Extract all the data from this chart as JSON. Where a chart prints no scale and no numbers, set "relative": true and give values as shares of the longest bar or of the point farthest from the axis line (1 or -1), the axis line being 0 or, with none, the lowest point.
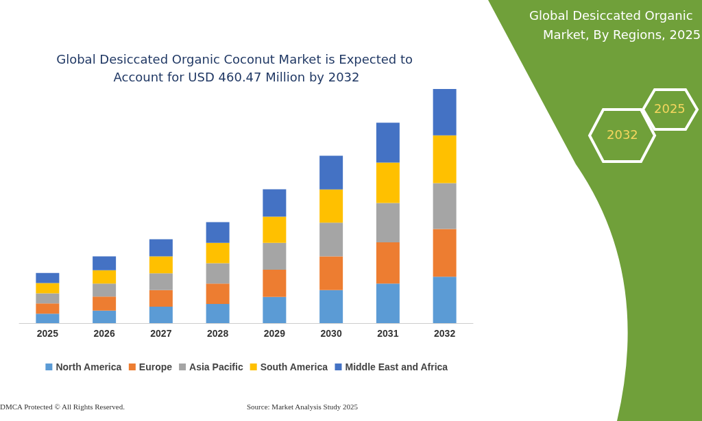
{
  "chart_data": {
    "type": "bar",
    "title": "Global Desiccated Organic Coconut Market is Expected to Account for USD 460.47 Million by 2032",
    "categories": [
      "2025",
      "2026",
      "2027",
      "2028",
      "2029",
      "2030",
      "2031",
      "2032"
    ],
    "stacked": true,
    "relative": true,
    "legend": "bottom",
    "series": [
      {
        "name": "North America",
        "color": "#5b9bd5",
        "values": [
          0.04,
          0.053,
          0.07,
          0.082,
          0.112,
          0.141,
          0.169,
          0.198
        ]
      },
      {
        "name": "Europe",
        "color": "#ed7d31",
        "values": [
          0.044,
          0.06,
          0.071,
          0.087,
          0.116,
          0.144,
          0.176,
          0.204
        ]
      },
      {
        "name": "Asia Pacific",
        "color": "#a5a5a5",
        "values": [
          0.043,
          0.056,
          0.072,
          0.087,
          0.115,
          0.144,
          0.168,
          0.196
        ]
      },
      {
        "name": "South America",
        "color": "#ffc000",
        "values": [
          0.044,
          0.057,
          0.072,
          0.087,
          0.112,
          0.142,
          0.173,
          0.204
        ]
      },
      {
        "name": "Middle East and Africa",
        "color": "#4472c4",
        "values": [
          0.043,
          0.059,
          0.073,
          0.088,
          0.117,
          0.144,
          0.17,
          0.198
        ]
      }
    ],
    "annotations": [
      "Global Desiccated Organic",
      "Market, By Regions, 2025",
      "2032",
      "2025",
      "DMCA Protected © All Rights Reserved.",
      "Source: Market Analysis Study 2025"
    ]
  }
}
